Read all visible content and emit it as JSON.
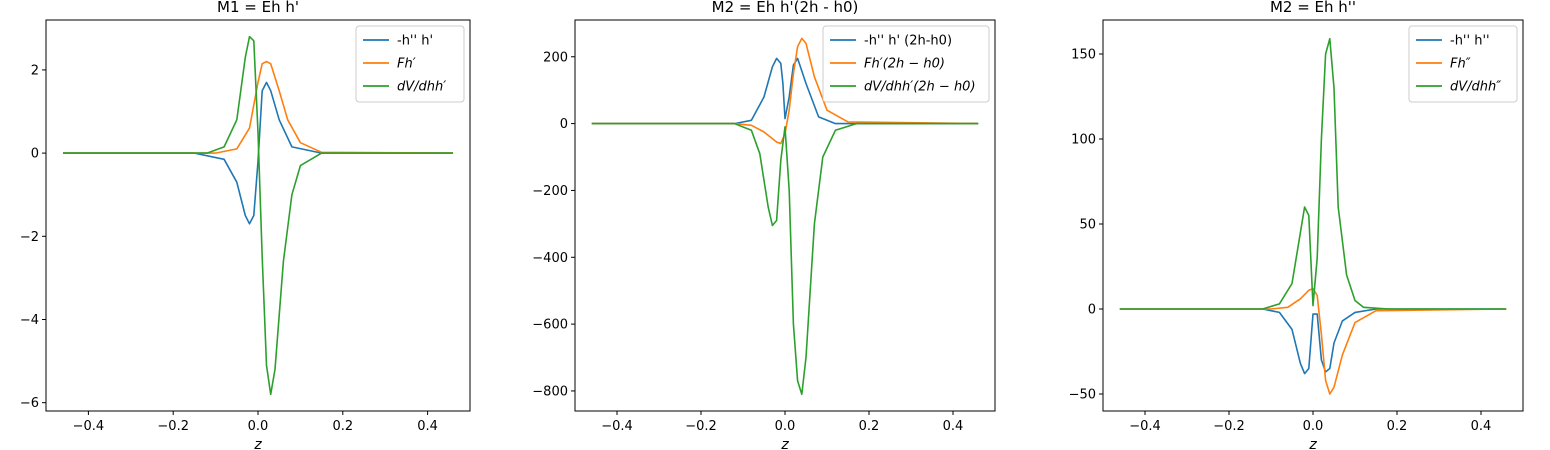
{
  "colors": {
    "blue": "#1f77b4",
    "orange": "#ff7f0e",
    "green": "#2ca02c"
  },
  "chart_data": [
    {
      "type": "line",
      "title": "M1 = Eh h'",
      "xlabel": "z",
      "ylabel": "",
      "xlim": [
        -0.5,
        0.5
      ],
      "ylim": [
        -6.2,
        3.2
      ],
      "xticks": [
        "-0.4",
        "-0.2",
        "0.0",
        "0.2",
        "0.4"
      ],
      "xtick_values": [
        -0.4,
        -0.2,
        0.0,
        0.2,
        0.4
      ],
      "yticks": [
        "-6",
        "-4",
        "-2",
        "0",
        "2"
      ],
      "ytick_values": [
        -6,
        -4,
        -2,
        0,
        2
      ],
      "legend_position": "top-right",
      "series": [
        {
          "name": "-h'' h'",
          "color": "#1f77b4",
          "math": false,
          "x": [
            -0.46,
            -0.15,
            -0.08,
            -0.05,
            -0.03,
            -0.02,
            -0.01,
            0.0,
            0.01,
            0.02,
            0.03,
            0.05,
            0.08,
            0.15,
            0.46
          ],
          "y": [
            0,
            0,
            -0.15,
            -0.7,
            -1.5,
            -1.7,
            -1.5,
            -0.2,
            1.5,
            1.7,
            1.5,
            0.8,
            0.15,
            0,
            0
          ]
        },
        {
          "name": "Fh′",
          "color": "#ff7f0e",
          "math": true,
          "x": [
            -0.46,
            -0.1,
            -0.05,
            -0.02,
            0.0,
            0.01,
            0.02,
            0.03,
            0.05,
            0.07,
            0.1,
            0.15,
            0.46
          ],
          "y": [
            0,
            0,
            0.1,
            0.6,
            1.7,
            2.15,
            2.2,
            2.15,
            1.5,
            0.8,
            0.25,
            0.02,
            0
          ]
        },
        {
          "name": "dV/dhh′",
          "color": "#2ca02c",
          "math": true,
          "x": [
            -0.46,
            -0.12,
            -0.08,
            -0.05,
            -0.03,
            -0.02,
            -0.01,
            0.0,
            0.01,
            0.02,
            0.03,
            0.04,
            0.06,
            0.08,
            0.1,
            0.15,
            0.46
          ],
          "y": [
            0,
            0,
            0.15,
            0.8,
            2.3,
            2.8,
            2.7,
            0.5,
            -2.5,
            -5.1,
            -5.8,
            -5.2,
            -2.6,
            -1.0,
            -0.3,
            0,
            0
          ]
        }
      ]
    },
    {
      "type": "line",
      "title": "M2 = Eh h'(2h - h0)",
      "xlabel": "z",
      "ylabel": "",
      "xlim": [
        -0.5,
        0.5
      ],
      "ylim": [
        -860,
        310
      ],
      "xticks": [
        "-0.4",
        "-0.2",
        "0.0",
        "0.2",
        "0.4"
      ],
      "xtick_values": [
        -0.4,
        -0.2,
        0.0,
        0.2,
        0.4
      ],
      "yticks": [
        "-800",
        "-600",
        "-400",
        "-200",
        "0",
        "200"
      ],
      "ytick_values": [
        -800,
        -600,
        -400,
        -200,
        0,
        200
      ],
      "legend_position": "top-right",
      "series": [
        {
          "name": "-h'' h' (2h-h0)",
          "color": "#1f77b4",
          "math": false,
          "x": [
            -0.46,
            -0.12,
            -0.08,
            -0.05,
            -0.03,
            -0.02,
            -0.01,
            -0.005,
            0.0,
            0.01,
            0.02,
            0.03,
            0.05,
            0.08,
            0.12,
            0.46
          ],
          "y": [
            0,
            0,
            10,
            80,
            170,
            195,
            180,
            120,
            15,
            80,
            175,
            195,
            120,
            20,
            0,
            0
          ]
        },
        {
          "name": "Fh′(2h − h0)",
          "color": "#ff7f0e",
          "math": true,
          "x": [
            -0.46,
            -0.12,
            -0.08,
            -0.05,
            -0.02,
            -0.01,
            0.0,
            0.01,
            0.02,
            0.03,
            0.04,
            0.05,
            0.07,
            0.1,
            0.15,
            0.46
          ],
          "y": [
            0,
            0,
            -5,
            -25,
            -55,
            -60,
            -30,
            40,
            150,
            230,
            255,
            240,
            140,
            40,
            5,
            0
          ]
        },
        {
          "name": "dV/dhh′(2h − h0)",
          "color": "#2ca02c",
          "math": true,
          "x": [
            -0.46,
            -0.12,
            -0.08,
            -0.06,
            -0.04,
            -0.03,
            -0.02,
            -0.01,
            0.0,
            0.01,
            0.02,
            0.03,
            0.04,
            0.05,
            0.07,
            0.09,
            0.12,
            0.17,
            0.46
          ],
          "y": [
            0,
            0,
            -20,
            -90,
            -250,
            -305,
            -290,
            -110,
            -10,
            -200,
            -600,
            -770,
            -810,
            -700,
            -300,
            -100,
            -20,
            0,
            0
          ]
        }
      ]
    },
    {
      "type": "line",
      "title": "M2 = Eh h''",
      "xlabel": "z",
      "ylabel": "",
      "xlim": [
        -0.5,
        0.5
      ],
      "ylim": [
        -60,
        170
      ],
      "xticks": [
        "-0.4",
        "-0.2",
        "0.0",
        "0.2",
        "0.4"
      ],
      "xtick_values": [
        -0.4,
        -0.2,
        0.0,
        0.2,
        0.4
      ],
      "yticks": [
        "-50",
        "0",
        "50",
        "100",
        "150"
      ],
      "ytick_values": [
        -50,
        0,
        50,
        100,
        150
      ],
      "legend_position": "top-right",
      "series": [
        {
          "name": "-h'' h''",
          "color": "#1f77b4",
          "math": false,
          "x": [
            -0.46,
            -0.12,
            -0.08,
            -0.05,
            -0.03,
            -0.02,
            -0.01,
            0.0,
            0.01,
            0.02,
            0.03,
            0.04,
            0.05,
            0.07,
            0.1,
            0.15,
            0.46
          ],
          "y": [
            0,
            0,
            -2,
            -12,
            -32,
            -38,
            -35,
            -3,
            -3,
            -30,
            -37,
            -35,
            -20,
            -7,
            -2,
            0,
            0
          ]
        },
        {
          "name": "Fh″",
          "color": "#ff7f0e",
          "math": true,
          "x": [
            -0.46,
            -0.1,
            -0.06,
            -0.03,
            -0.01,
            0.0,
            0.01,
            0.02,
            0.03,
            0.04,
            0.05,
            0.07,
            0.1,
            0.15,
            0.46
          ],
          "y": [
            0,
            0,
            1,
            6,
            11,
            12,
            8,
            -15,
            -42,
            -50,
            -46,
            -27,
            -8,
            -1,
            0
          ]
        },
        {
          "name": "dV/dhh″",
          "color": "#2ca02c",
          "math": true,
          "x": [
            -0.46,
            -0.12,
            -0.08,
            -0.05,
            -0.03,
            -0.02,
            -0.01,
            0.0,
            0.01,
            0.02,
            0.03,
            0.04,
            0.05,
            0.06,
            0.08,
            0.1,
            0.12,
            0.18,
            0.46
          ],
          "y": [
            0,
            0,
            3,
            15,
            45,
            60,
            55,
            2,
            30,
            100,
            150,
            159,
            130,
            60,
            20,
            5,
            1,
            0,
            0
          ]
        }
      ]
    }
  ]
}
